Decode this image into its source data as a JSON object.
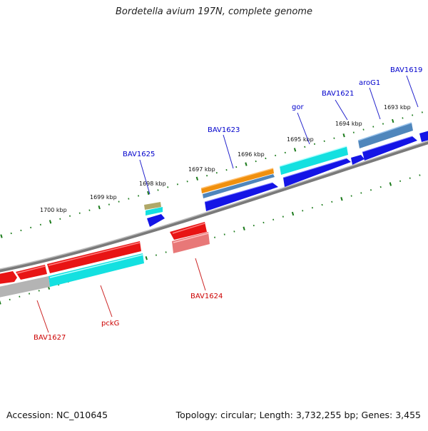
{
  "title": "Bordetella avium 197N, complete genome",
  "footer": {
    "accession": "Accession: NC_010645",
    "summary": "Topology: circular; Length: 3,732,255 bp; Genes: 3,455"
  },
  "scale_ticks": [
    "1700 kbp",
    "1699 kbp",
    "1698 kbp",
    "1697 kbp",
    "1696 kbp",
    "1695 kbp",
    "1694 kbp",
    "1693 kbp"
  ],
  "forward_gene_labels": [
    "BAV1625",
    "BAV1623",
    "gor",
    "BAV1621",
    "aroG1",
    "BAV1619"
  ],
  "reverse_gene_labels": [
    "BAV1627",
    "pckG",
    "BAV1624"
  ],
  "colors": {
    "forward_label": "#0000cc",
    "reverse_label": "#cc0000",
    "cds_forward": "#1010e0",
    "cds_reverse": "#e81010",
    "gene_feature": "#10e8e8",
    "rna_feature": "#f08a10",
    "steel_feature": "#4f88c0",
    "backbone": "#888888",
    "tick": "#1a7a1a"
  }
}
